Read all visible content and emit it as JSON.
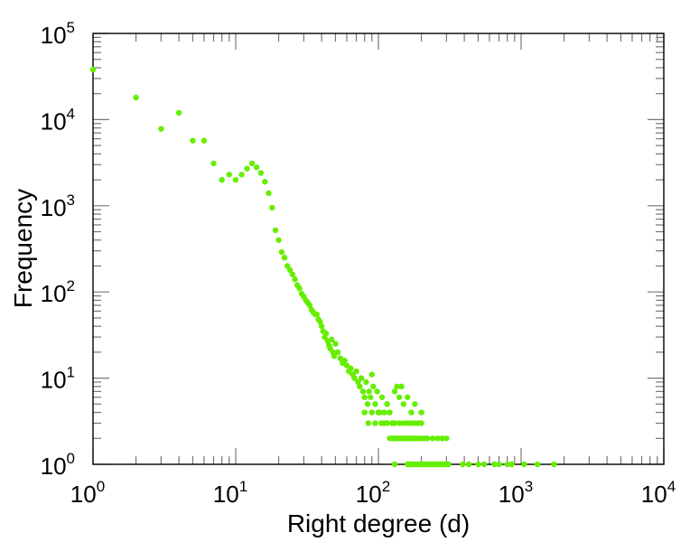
{
  "chart_data": {
    "type": "scatter",
    "title": "",
    "xlabel": "Right degree (d)",
    "ylabel": "Frequency",
    "xscale": "log",
    "yscale": "log",
    "xlim": [
      1,
      10000
    ],
    "ylim": [
      1,
      100000
    ],
    "x_ticks": [
      {
        "base": "10",
        "exp": "0",
        "value": 1
      },
      {
        "base": "10",
        "exp": "1",
        "value": 10
      },
      {
        "base": "10",
        "exp": "2",
        "value": 100
      },
      {
        "base": "10",
        "exp": "3",
        "value": 1000
      },
      {
        "base": "10",
        "exp": "4",
        "value": 10000
      }
    ],
    "y_ticks": [
      {
        "base": "10",
        "exp": "0",
        "value": 1
      },
      {
        "base": "10",
        "exp": "1",
        "value": 10
      },
      {
        "base": "10",
        "exp": "2",
        "value": 100
      },
      {
        "base": "10",
        "exp": "3",
        "value": 1000
      },
      {
        "base": "10",
        "exp": "4",
        "value": 10000
      },
      {
        "base": "10",
        "exp": "5",
        "value": 100000
      }
    ],
    "marker_color": "#66ee00",
    "series": [
      {
        "name": "right-degree",
        "points": [
          [
            1,
            38000
          ],
          [
            2,
            18000
          ],
          [
            3,
            7800
          ],
          [
            4,
            12000
          ],
          [
            5,
            5700
          ],
          [
            6,
            5700
          ],
          [
            7,
            3100
          ],
          [
            8,
            2000
          ],
          [
            9,
            2300
          ],
          [
            10,
            2000
          ],
          [
            11,
            2300
          ],
          [
            12,
            2700
          ],
          [
            13,
            3100
          ],
          [
            14,
            2800
          ],
          [
            15,
            2400
          ],
          [
            16,
            1900
          ],
          [
            17,
            1400
          ],
          [
            18,
            950
          ],
          [
            19,
            520
          ],
          [
            20,
            400
          ],
          [
            21,
            290
          ],
          [
            22,
            250
          ],
          [
            23,
            200
          ],
          [
            24,
            180
          ],
          [
            25,
            160
          ],
          [
            26,
            140
          ],
          [
            27,
            120
          ],
          [
            28,
            110
          ],
          [
            29,
            95
          ],
          [
            30,
            88
          ],
          [
            31,
            80
          ],
          [
            32,
            75
          ],
          [
            33,
            70
          ],
          [
            34,
            62
          ],
          [
            35,
            58
          ],
          [
            36,
            55
          ],
          [
            37,
            55
          ],
          [
            38,
            48
          ],
          [
            39,
            45
          ],
          [
            40,
            40
          ],
          [
            41,
            35
          ],
          [
            42,
            30
          ],
          [
            43,
            33
          ],
          [
            44,
            27
          ],
          [
            45,
            24
          ],
          [
            46,
            22
          ],
          [
            47,
            28
          ],
          [
            48,
            20
          ],
          [
            49,
            18
          ],
          [
            50,
            25
          ],
          [
            52,
            20
          ],
          [
            54,
            17
          ],
          [
            56,
            15
          ],
          [
            58,
            16
          ],
          [
            60,
            14
          ],
          [
            62,
            12
          ],
          [
            64,
            13
          ],
          [
            66,
            11
          ],
          [
            68,
            10
          ],
          [
            70,
            12
          ],
          [
            72,
            9
          ],
          [
            74,
            8
          ],
          [
            76,
            10
          ],
          [
            78,
            7
          ],
          [
            80,
            6
          ],
          [
            82,
            9
          ],
          [
            84,
            5
          ],
          [
            86,
            7
          ],
          [
            88,
            6
          ],
          [
            90,
            11
          ],
          [
            92,
            8
          ],
          [
            95,
            5
          ],
          [
            98,
            7
          ],
          [
            102,
            4
          ],
          [
            106,
            6
          ],
          [
            110,
            3
          ],
          [
            115,
            5
          ],
          [
            120,
            4
          ],
          [
            125,
            3
          ],
          [
            130,
            7
          ],
          [
            135,
            8
          ],
          [
            140,
            6
          ],
          [
            145,
            8
          ],
          [
            150,
            5
          ],
          [
            160,
            6
          ],
          [
            170,
            4
          ],
          [
            180,
            5
          ],
          [
            200,
            4
          ],
          [
            80,
            4
          ],
          [
            85,
            3
          ],
          [
            90,
            4
          ],
          [
            95,
            3
          ],
          [
            100,
            4
          ],
          [
            105,
            3
          ],
          [
            110,
            4
          ],
          [
            115,
            3
          ],
          [
            120,
            4
          ],
          [
            125,
            3
          ],
          [
            130,
            3
          ],
          [
            140,
            3
          ],
          [
            150,
            3
          ],
          [
            160,
            3
          ],
          [
            170,
            3
          ],
          [
            180,
            3
          ],
          [
            190,
            3
          ],
          [
            200,
            3
          ],
          [
            120,
            2
          ],
          [
            125,
            2
          ],
          [
            130,
            2
          ],
          [
            135,
            2
          ],
          [
            140,
            2
          ],
          [
            145,
            2
          ],
          [
            150,
            2
          ],
          [
            155,
            2
          ],
          [
            160,
            2
          ],
          [
            165,
            2
          ],
          [
            170,
            2
          ],
          [
            175,
            2
          ],
          [
            180,
            2
          ],
          [
            185,
            2
          ],
          [
            190,
            2
          ],
          [
            200,
            2
          ],
          [
            210,
            2
          ],
          [
            220,
            2
          ],
          [
            240,
            2
          ],
          [
            260,
            2
          ],
          [
            280,
            2
          ],
          [
            300,
            2
          ],
          [
            130,
            1
          ],
          [
            160,
            1
          ],
          [
            165,
            1
          ],
          [
            170,
            1
          ],
          [
            175,
            1
          ],
          [
            180,
            1
          ],
          [
            185,
            1
          ],
          [
            190,
            1
          ],
          [
            195,
            1
          ],
          [
            200,
            1
          ],
          [
            205,
            1
          ],
          [
            210,
            1
          ],
          [
            215,
            1
          ],
          [
            220,
            1
          ],
          [
            225,
            1
          ],
          [
            230,
            1
          ],
          [
            235,
            1
          ],
          [
            240,
            1
          ],
          [
            245,
            1
          ],
          [
            250,
            1
          ],
          [
            255,
            1
          ],
          [
            260,
            1
          ],
          [
            265,
            1
          ],
          [
            270,
            1
          ],
          [
            275,
            1
          ],
          [
            280,
            1
          ],
          [
            285,
            1
          ],
          [
            290,
            1
          ],
          [
            295,
            1
          ],
          [
            300,
            1
          ],
          [
            310,
            1
          ],
          [
            390,
            1
          ],
          [
            430,
            1
          ],
          [
            500,
            1
          ],
          [
            550,
            1
          ],
          [
            650,
            1
          ],
          [
            700,
            1
          ],
          [
            800,
            1
          ],
          [
            860,
            1
          ],
          [
            1050,
            1
          ],
          [
            1300,
            1
          ],
          [
            1700,
            1
          ]
        ]
      }
    ]
  }
}
